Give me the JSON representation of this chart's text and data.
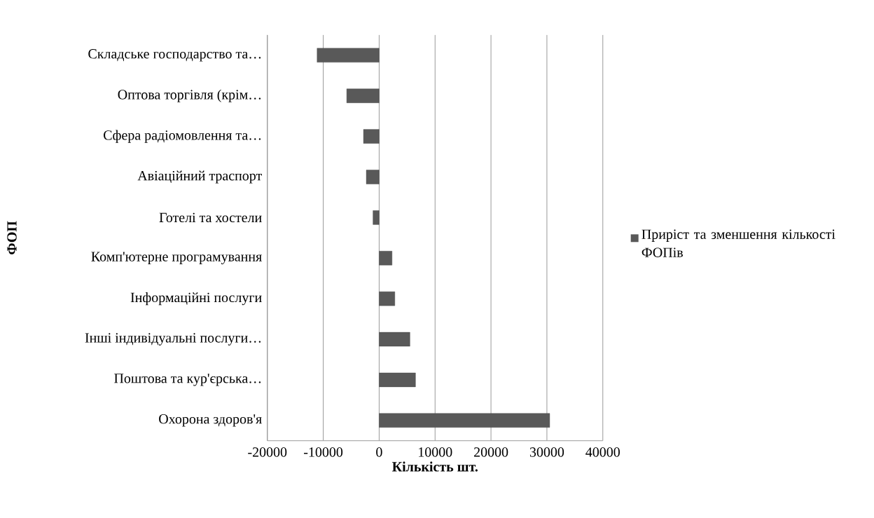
{
  "chart_data": {
    "type": "bar",
    "orientation": "horizontal",
    "categories": [
      "Складське господарство та…",
      "Оптова торгівля (крім…",
      "Сфера радіомовлення та…",
      "Авіаційний траспорт",
      "Готелі та хостели",
      "Комп'ютерне програмування",
      "Інформаційні послуги",
      "Інші індивідуальні послуги…",
      "Поштова та кур'єрська…",
      "Охорона здоров'я"
    ],
    "series": [
      {
        "name": "Приріст та зменшення кількості ФОПів",
        "color": "#595959",
        "values": [
          -11100,
          -5800,
          -2800,
          -2300,
          -1100,
          2300,
          2800,
          5500,
          6500,
          30500
        ]
      }
    ],
    "xlabel": "Кількість шт.",
    "ylabel": "ФОП",
    "xlim": [
      -20000,
      40000
    ],
    "xticks": [
      -20000,
      -10000,
      0,
      10000,
      20000,
      30000,
      40000
    ],
    "grid": "x",
    "legend": "right"
  }
}
